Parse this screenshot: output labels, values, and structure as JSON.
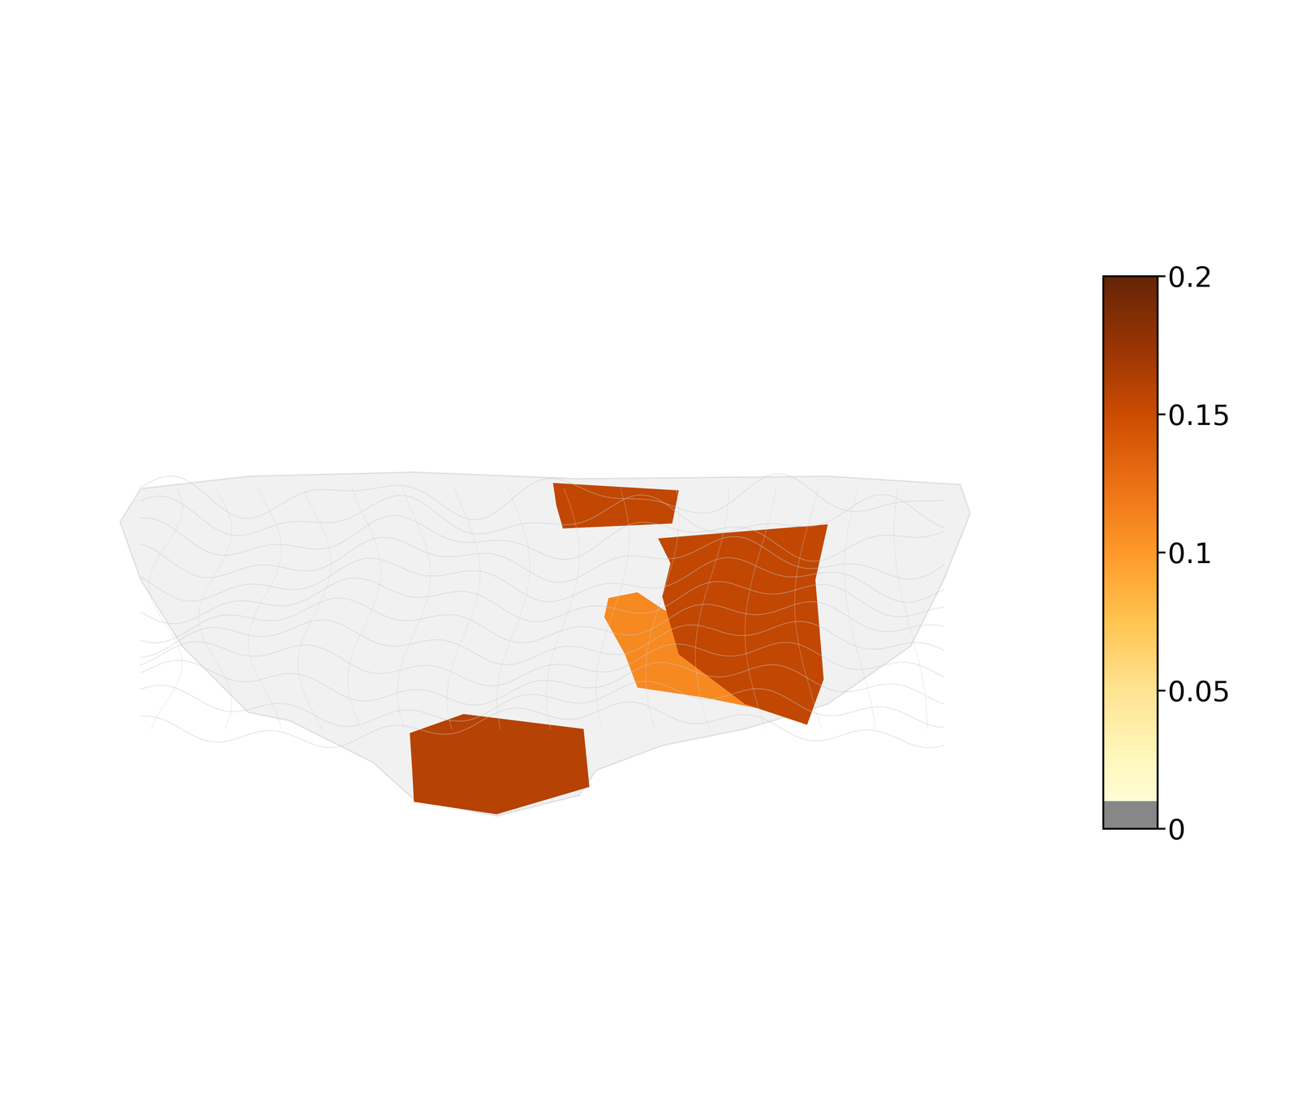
{
  "chart_data": {
    "type": "brain_surface_map",
    "values": [
      0.155,
      0.11,
      0.155,
      0.16
    ],
    "colorbar": {
      "range": [
        0,
        0.2
      ],
      "ticks": [
        0,
        0.05,
        0.1,
        0.15,
        0.2
      ],
      "threshold": 0.01
    }
  }
}
